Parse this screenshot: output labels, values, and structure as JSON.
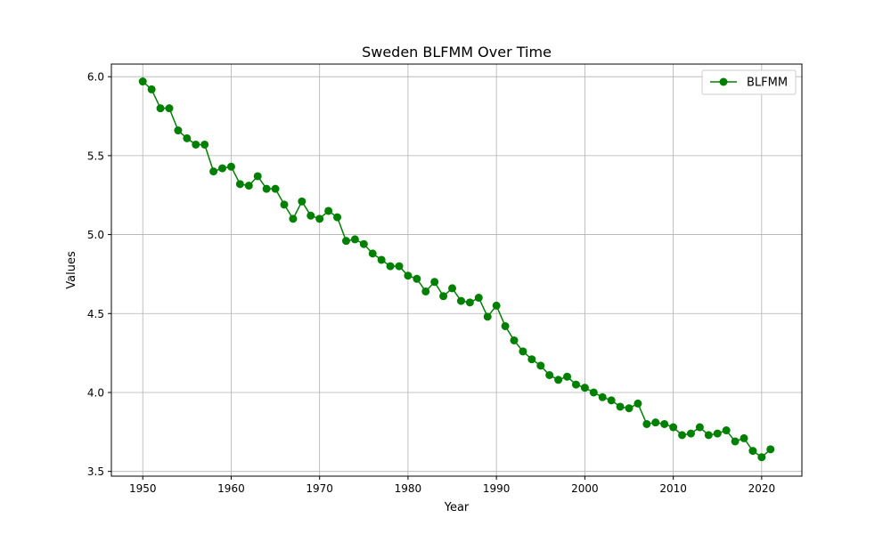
{
  "chart_data": {
    "type": "line",
    "title": "Sweden BLFMM Over Time",
    "xlabel": "Year",
    "ylabel": "Values",
    "xlim": [
      1946.45,
      2024.55
    ],
    "ylim": [
      3.47,
      6.08
    ],
    "xticks": [
      1950,
      1960,
      1970,
      1980,
      1990,
      2000,
      2010,
      2020
    ],
    "yticks": [
      3.5,
      4.0,
      4.5,
      5.0,
      5.5,
      6.0
    ],
    "ytick_labels": [
      "3.5",
      "4.0",
      "4.5",
      "5.0",
      "5.5",
      "6.0"
    ],
    "grid": true,
    "legend_position": "top-right",
    "series": [
      {
        "name": "BLFMM",
        "color": "#008000",
        "marker": "circle",
        "x": [
          1950,
          1951,
          1952,
          1953,
          1954,
          1955,
          1956,
          1957,
          1958,
          1959,
          1960,
          1961,
          1962,
          1963,
          1964,
          1965,
          1966,
          1967,
          1968,
          1969,
          1970,
          1971,
          1972,
          1973,
          1974,
          1975,
          1976,
          1977,
          1978,
          1979,
          1980,
          1981,
          1982,
          1983,
          1984,
          1985,
          1986,
          1987,
          1988,
          1989,
          1990,
          1991,
          1992,
          1993,
          1994,
          1995,
          1996,
          1997,
          1998,
          1999,
          2000,
          2001,
          2002,
          2003,
          2004,
          2005,
          2006,
          2007,
          2008,
          2009,
          2010,
          2011,
          2012,
          2013,
          2014,
          2015,
          2016,
          2017,
          2018,
          2019,
          2020,
          2021
        ],
        "y": [
          5.97,
          5.92,
          5.8,
          5.8,
          5.66,
          5.61,
          5.57,
          5.57,
          5.4,
          5.42,
          5.43,
          5.32,
          5.31,
          5.37,
          5.29,
          5.29,
          5.19,
          5.1,
          5.21,
          5.12,
          5.1,
          5.15,
          5.11,
          4.96,
          4.97,
          4.94,
          4.88,
          4.84,
          4.8,
          4.8,
          4.74,
          4.72,
          4.64,
          4.7,
          4.61,
          4.66,
          4.58,
          4.57,
          4.6,
          4.48,
          4.55,
          4.42,
          4.33,
          4.26,
          4.21,
          4.17,
          4.11,
          4.08,
          4.1,
          4.05,
          4.03,
          4.0,
          3.97,
          3.95,
          3.91,
          3.9,
          3.93,
          3.8,
          3.81,
          3.8,
          3.78,
          3.73,
          3.74,
          3.78,
          3.73,
          3.74,
          3.76,
          3.69,
          3.71,
          3.63,
          3.59,
          3.64
        ]
      }
    ]
  }
}
